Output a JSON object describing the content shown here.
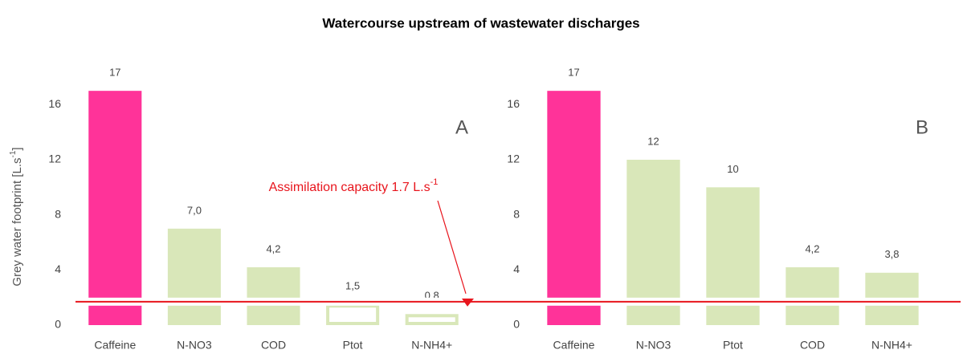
{
  "title": "Watercourse upstream of wastewater discharges",
  "y_label": [
    "Grey water footprint  [L.s",
    "-1",
    "]"
  ],
  "annotation": [
    "Assimilation capacity 1.7 L.s",
    "-1"
  ],
  "assimilation_capacity": 1.7,
  "line_color": "#e8141c",
  "chart_data": [
    {
      "type": "bar",
      "panel_label": "A",
      "categories": [
        "Caffeine",
        "N-NO3",
        "COD",
        "Ptot",
        "N-NH4+"
      ],
      "values": [
        17,
        7.0,
        4.2,
        1.5,
        0.8
      ],
      "value_labels": [
        "17",
        "7,0",
        "4,2",
        "1,5",
        "0,8"
      ],
      "colors": [
        "#ff3399",
        "#d9e7b9",
        "#d9e7b9",
        "#d9e7b9",
        "#d9e7b9"
      ],
      "ylim": [
        0,
        18
      ],
      "yticks": [
        0,
        4,
        8,
        12,
        16
      ]
    },
    {
      "type": "bar",
      "panel_label": "B",
      "categories": [
        "Caffeine",
        "N-NO3",
        "Ptot",
        "COD",
        "N-NH4+"
      ],
      "values": [
        17,
        12,
        10,
        4.2,
        3.8
      ],
      "value_labels": [
        "17",
        "12",
        "10",
        "4,2",
        "3,8"
      ],
      "colors": [
        "#ff3399",
        "#d9e7b9",
        "#d9e7b9",
        "#d9e7b9",
        "#d9e7b9"
      ],
      "ylim": [
        0,
        18
      ],
      "yticks": [
        0,
        4,
        8,
        12,
        16
      ]
    }
  ]
}
